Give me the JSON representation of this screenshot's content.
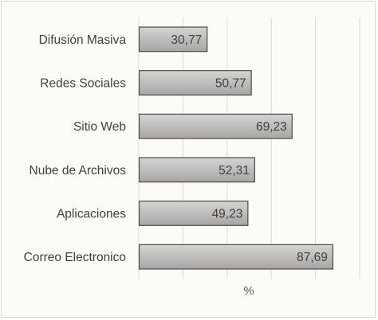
{
  "chart_data": {
    "type": "bar",
    "orientation": "horizontal",
    "categories": [
      "Difusión Masiva",
      "Redes Sociales",
      "Sitio Web",
      "Nube de Archivos",
      "Aplicaciones",
      "Correo Electronico"
    ],
    "values": [
      30.77,
      50.77,
      69.23,
      52.31,
      49.23,
      87.69
    ],
    "value_labels": [
      "30,77",
      "50,77",
      "69,23",
      "52,31",
      "49,23",
      "87,69"
    ],
    "title": "",
    "xlabel": "%",
    "ylabel": "",
    "xlim": [
      0,
      100
    ],
    "grid": true,
    "legend": "none",
    "colors": {
      "bar_top": "#d6d4d2",
      "bar_bottom": "#a8a5a3",
      "bar_border": "#4a4a4a",
      "gridline": "#d9d9d9",
      "background": "#fdfbf6"
    }
  }
}
